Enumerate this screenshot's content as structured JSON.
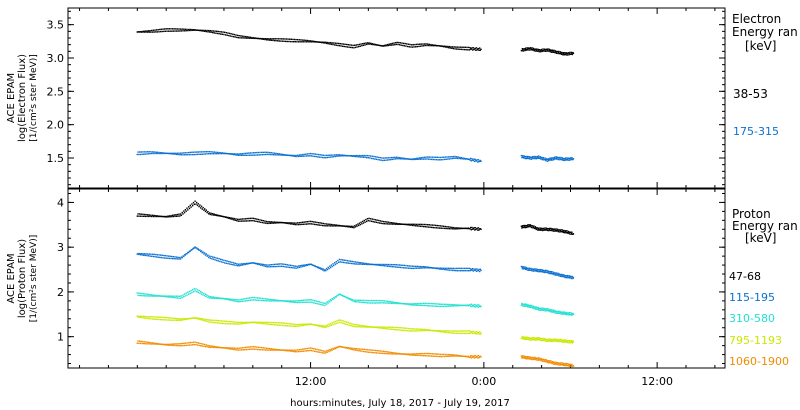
{
  "chart_data": [
    {
      "type": "scatter",
      "instrument_label": "ACE EPAM",
      "ylabel": "log(Electron Flux)",
      "yunits": "[1/(cm²s ster MeV)]",
      "ylim": [
        1.05,
        3.75
      ],
      "yticks": [
        "1.5",
        "2.0",
        "2.5",
        "3.0",
        "3.5"
      ],
      "ytick_values": [
        1.5,
        2.0,
        2.5,
        3.0,
        3.5
      ],
      "legend_title": [
        "Electron",
        "Energy ran"
      ],
      "legend_units": "[keV]",
      "series": [
        {
          "name": "38-53",
          "color": "#000000",
          "segments": [
            {
              "x": [
                0,
                1,
                2,
                3,
                4,
                5,
                6,
                7,
                8,
                9,
                10,
                11,
                12,
                13,
                14,
                15,
                16,
                17,
                18,
                19,
                20,
                21,
                22,
                23,
                23.8
              ],
              "y": [
                3.39,
                3.4,
                3.42,
                3.42,
                3.42,
                3.4,
                3.37,
                3.32,
                3.3,
                3.28,
                3.27,
                3.26,
                3.25,
                3.23,
                3.2,
                3.17,
                3.22,
                3.18,
                3.22,
                3.18,
                3.2,
                3.18,
                3.15,
                3.14,
                3.13
              ]
            },
            {
              "x": [
                26.6,
                27.2,
                27.8,
                28.4,
                29,
                29.6,
                30.2
              ],
              "y": [
                3.12,
                3.14,
                3.11,
                3.12,
                3.09,
                3.06,
                3.07
              ]
            }
          ]
        },
        {
          "name": "175-315",
          "color": "#0a70d0",
          "segments": [
            {
              "x": [
                0,
                1,
                2,
                3,
                4,
                5,
                6,
                7,
                8,
                9,
                10,
                11,
                12,
                13,
                14,
                15,
                16,
                17,
                18,
                19,
                20,
                21,
                22,
                23,
                23.8
              ],
              "y": [
                1.57,
                1.58,
                1.57,
                1.56,
                1.57,
                1.58,
                1.57,
                1.55,
                1.56,
                1.57,
                1.55,
                1.53,
                1.55,
                1.52,
                1.54,
                1.53,
                1.52,
                1.48,
                1.5,
                1.48,
                1.5,
                1.49,
                1.51,
                1.48,
                1.45
              ]
            },
            {
              "x": [
                26.6,
                27.2,
                27.8,
                28.4,
                29,
                29.6,
                30.2
              ],
              "y": [
                1.52,
                1.5,
                1.51,
                1.47,
                1.5,
                1.48,
                1.49
              ]
            }
          ]
        }
      ]
    },
    {
      "type": "scatter",
      "instrument_label": "ACE EPAM",
      "ylabel": "log(Proton Flux)",
      "yunits": "[1/(cm²s ster MeV)]",
      "ylim": [
        0.3,
        4.3
      ],
      "yticks": [
        "1",
        "2",
        "3",
        "4"
      ],
      "ytick_values": [
        1,
        2,
        3,
        4
      ],
      "xlabel": "hours:minutes, July 18, 2017 - July 19, 2017",
      "xticks": [
        "12:00",
        "0:00",
        "12:00"
      ],
      "xtick_values": [
        12,
        24,
        36
      ],
      "xlim": [
        -4.8,
        40.7
      ],
      "legend_title": [
        "Proton",
        "Energy ran"
      ],
      "legend_units": "[keV]",
      "series": [
        {
          "name": "47-68",
          "color": "#000000",
          "segments": [
            {
              "x": [
                0,
                1,
                2,
                3,
                4,
                5,
                6,
                7,
                8,
                9,
                10,
                11,
                12,
                13,
                14,
                15,
                16,
                17,
                18,
                19,
                20,
                21,
                22,
                23,
                23.8
              ],
              "y": [
                3.72,
                3.7,
                3.68,
                3.72,
                4.0,
                3.75,
                3.68,
                3.6,
                3.62,
                3.55,
                3.55,
                3.52,
                3.55,
                3.5,
                3.48,
                3.45,
                3.62,
                3.55,
                3.52,
                3.5,
                3.48,
                3.45,
                3.42,
                3.42,
                3.4
              ]
            },
            {
              "x": [
                26.6,
                27.2,
                27.8,
                28.4,
                29,
                29.6,
                30.2
              ],
              "y": [
                3.45,
                3.48,
                3.4,
                3.4,
                3.38,
                3.35,
                3.3
              ]
            }
          ]
        },
        {
          "name": "115-195",
          "color": "#0a70d0",
          "segments": [
            {
              "x": [
                0,
                1,
                2,
                3,
                4,
                5,
                6,
                7,
                8,
                9,
                10,
                11,
                12,
                13,
                14,
                15,
                16,
                17,
                18,
                19,
                20,
                21,
                22,
                23,
                23.8
              ],
              "y": [
                2.85,
                2.82,
                2.78,
                2.75,
                3.0,
                2.78,
                2.68,
                2.6,
                2.65,
                2.58,
                2.6,
                2.55,
                2.62,
                2.48,
                2.7,
                2.65,
                2.62,
                2.6,
                2.58,
                2.55,
                2.55,
                2.52,
                2.5,
                2.5,
                2.48
              ]
            },
            {
              "x": [
                26.6,
                27.2,
                27.8,
                28.4,
                29,
                29.6,
                30.2
              ],
              "y": [
                2.55,
                2.5,
                2.48,
                2.45,
                2.4,
                2.35,
                2.32
              ]
            }
          ]
        },
        {
          "name": "310-580",
          "color": "#20e0d0",
          "segments": [
            {
              "x": [
                0,
                1,
                2,
                3,
                4,
                5,
                6,
                7,
                8,
                9,
                10,
                11,
                12,
                13,
                14,
                15,
                16,
                17,
                18,
                19,
                20,
                21,
                22,
                23,
                23.8
              ],
              "y": [
                1.95,
                1.92,
                1.9,
                1.88,
                2.05,
                1.88,
                1.85,
                1.8,
                1.85,
                1.82,
                1.8,
                1.78,
                1.8,
                1.72,
                1.95,
                1.8,
                1.78,
                1.78,
                1.75,
                1.72,
                1.72,
                1.7,
                1.7,
                1.7,
                1.68
              ]
            },
            {
              "x": [
                26.6,
                27.2,
                27.8,
                28.4,
                29,
                29.6,
                30.2
              ],
              "y": [
                1.72,
                1.68,
                1.62,
                1.6,
                1.55,
                1.52,
                1.5
              ]
            }
          ]
        },
        {
          "name": "795-1193",
          "color": "#c8e800",
          "segments": [
            {
              "x": [
                0,
                1,
                2,
                3,
                4,
                5,
                6,
                7,
                8,
                9,
                10,
                11,
                12,
                13,
                14,
                15,
                16,
                17,
                18,
                19,
                20,
                21,
                22,
                23,
                23.8
              ],
              "y": [
                1.45,
                1.42,
                1.4,
                1.38,
                1.42,
                1.35,
                1.32,
                1.3,
                1.32,
                1.3,
                1.28,
                1.25,
                1.28,
                1.22,
                1.35,
                1.25,
                1.22,
                1.2,
                1.18,
                1.15,
                1.15,
                1.12,
                1.1,
                1.1,
                1.08
              ]
            },
            {
              "x": [
                26.6,
                27.2,
                27.8,
                28.4,
                29,
                29.6,
                30.2
              ],
              "y": [
                0.98,
                0.95,
                0.95,
                0.92,
                0.92,
                0.9,
                0.88
              ]
            }
          ]
        },
        {
          "name": "1060-1900",
          "color": "#f08c00",
          "segments": [
            {
              "x": [
                0,
                1,
                2,
                3,
                4,
                5,
                6,
                7,
                8,
                9,
                10,
                11,
                12,
                13,
                14,
                15,
                16,
                17,
                18,
                19,
                20,
                21,
                22,
                23,
                23.8
              ],
              "y": [
                0.88,
                0.85,
                0.82,
                0.82,
                0.85,
                0.78,
                0.75,
                0.72,
                0.75,
                0.72,
                0.7,
                0.68,
                0.72,
                0.65,
                0.78,
                0.72,
                0.68,
                0.65,
                0.62,
                0.6,
                0.6,
                0.58,
                0.58,
                0.55,
                0.55
              ]
            },
            {
              "x": [
                26.6,
                27.2,
                27.8,
                28.4,
                29,
                29.6,
                30.2
              ],
              "y": [
                0.55,
                0.52,
                0.5,
                0.45,
                0.4,
                0.38,
                0.35
              ]
            }
          ]
        }
      ]
    }
  ]
}
